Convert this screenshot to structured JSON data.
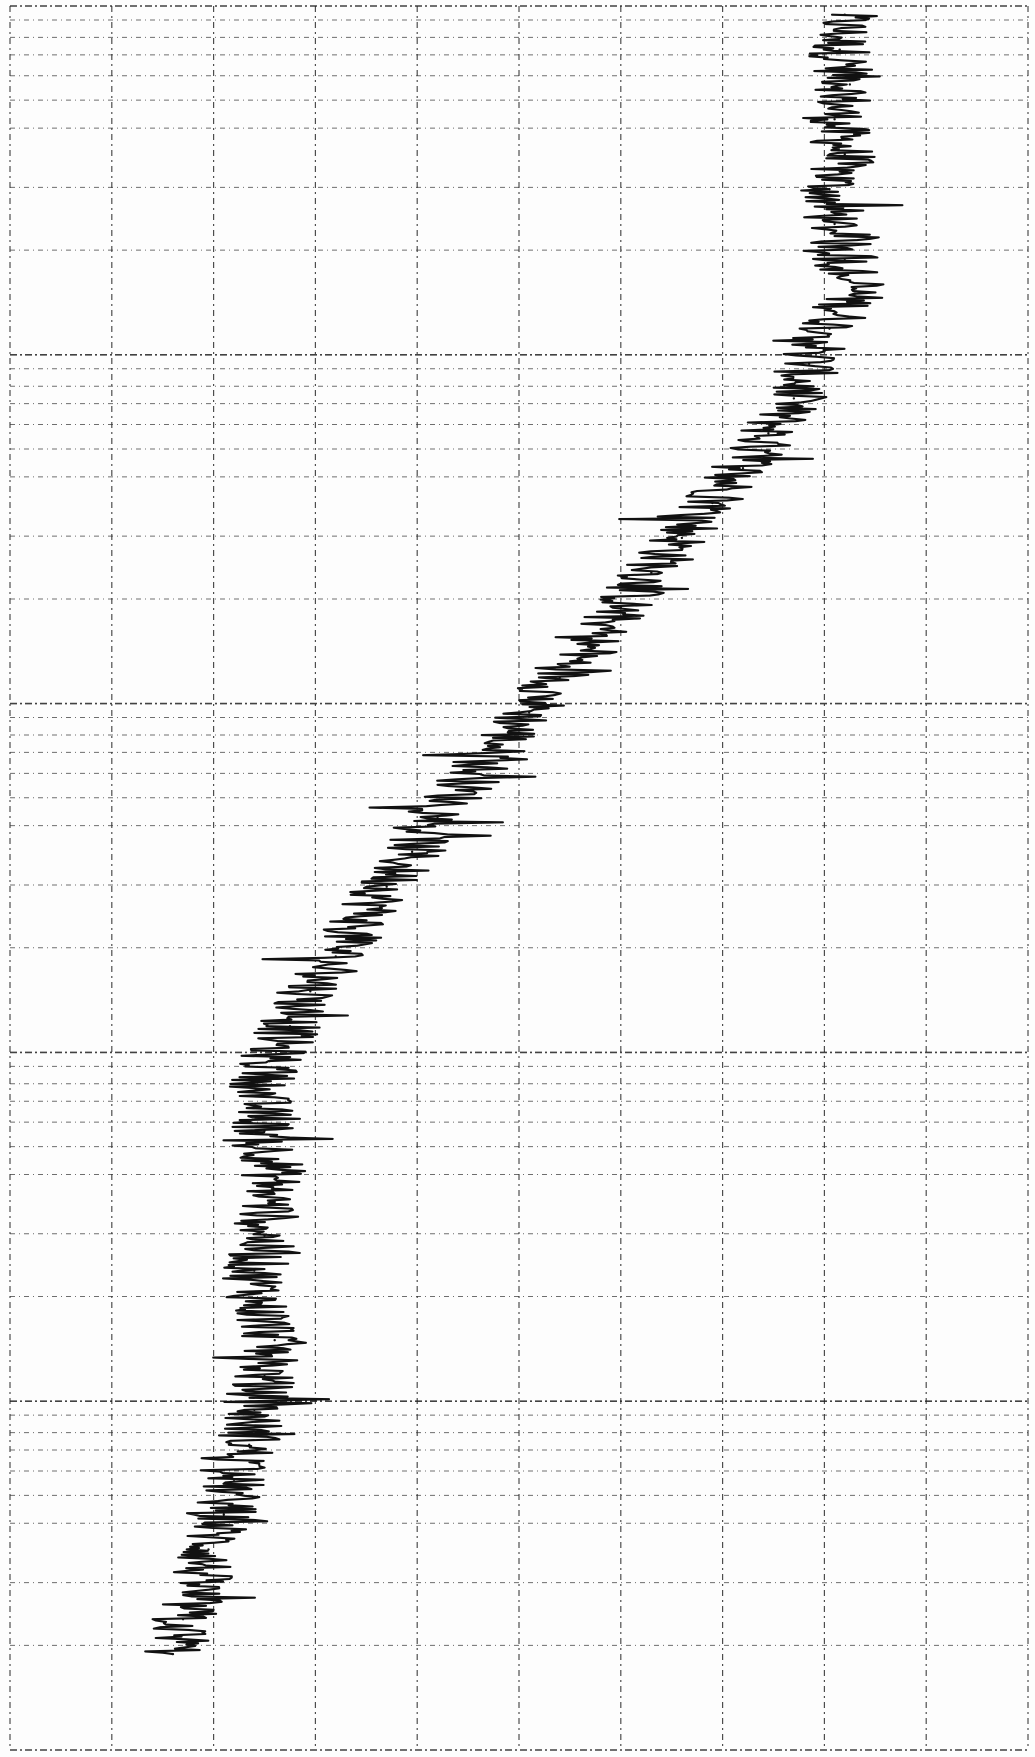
{
  "chart_data": {
    "type": "line",
    "title": "",
    "xlabel": "",
    "ylabel": "",
    "orientation": "vertical-trace",
    "xlim": [
      0,
      10
    ],
    "ylim": [
      0,
      100
    ],
    "grid": true,
    "grid_vertical_count": 10,
    "grid_horizontal_major": [
      0,
      20,
      40,
      60,
      80,
      100
    ],
    "noise_amplitude": 0.32,
    "line_color": "#111111",
    "grid_color": "#222222",
    "background_color": "#fdfdfd",
    "series": [
      {
        "x": [
          8.2,
          8.15,
          8.25,
          8.1,
          8.2,
          8.05,
          8.1,
          8.2,
          8.3,
          8.05,
          7.85,
          7.7,
          7.45,
          7.2,
          6.9,
          6.6,
          6.3,
          6.0,
          5.7,
          5.4,
          5.1,
          4.8,
          4.5,
          4.2,
          3.95,
          3.7,
          3.45,
          3.2,
          2.95,
          2.75,
          2.55,
          2.45,
          2.5,
          2.6,
          2.55,
          2.5,
          2.4,
          2.45,
          2.6,
          2.5,
          2.4,
          2.35,
          2.2,
          2.1,
          1.95,
          1.85,
          1.7,
          1.6
        ],
        "y": [
          0.5,
          2.5,
          4.5,
          6.5,
          8.5,
          10.5,
          12.5,
          14.5,
          16.5,
          18.5,
          20.5,
          22.5,
          24.5,
          26.5,
          28.5,
          30.5,
          32.5,
          34.5,
          36.5,
          38.5,
          40.5,
          42.5,
          44.5,
          46.5,
          48.5,
          50.5,
          52.5,
          54.5,
          56.5,
          58.5,
          60.5,
          62.5,
          64.5,
          66.5,
          68.5,
          70.5,
          72.5,
          74.5,
          76.5,
          78.5,
          80.5,
          82.5,
          84.5,
          86.5,
          88.5,
          90.5,
          92.5,
          94.5
        ]
      }
    ]
  }
}
